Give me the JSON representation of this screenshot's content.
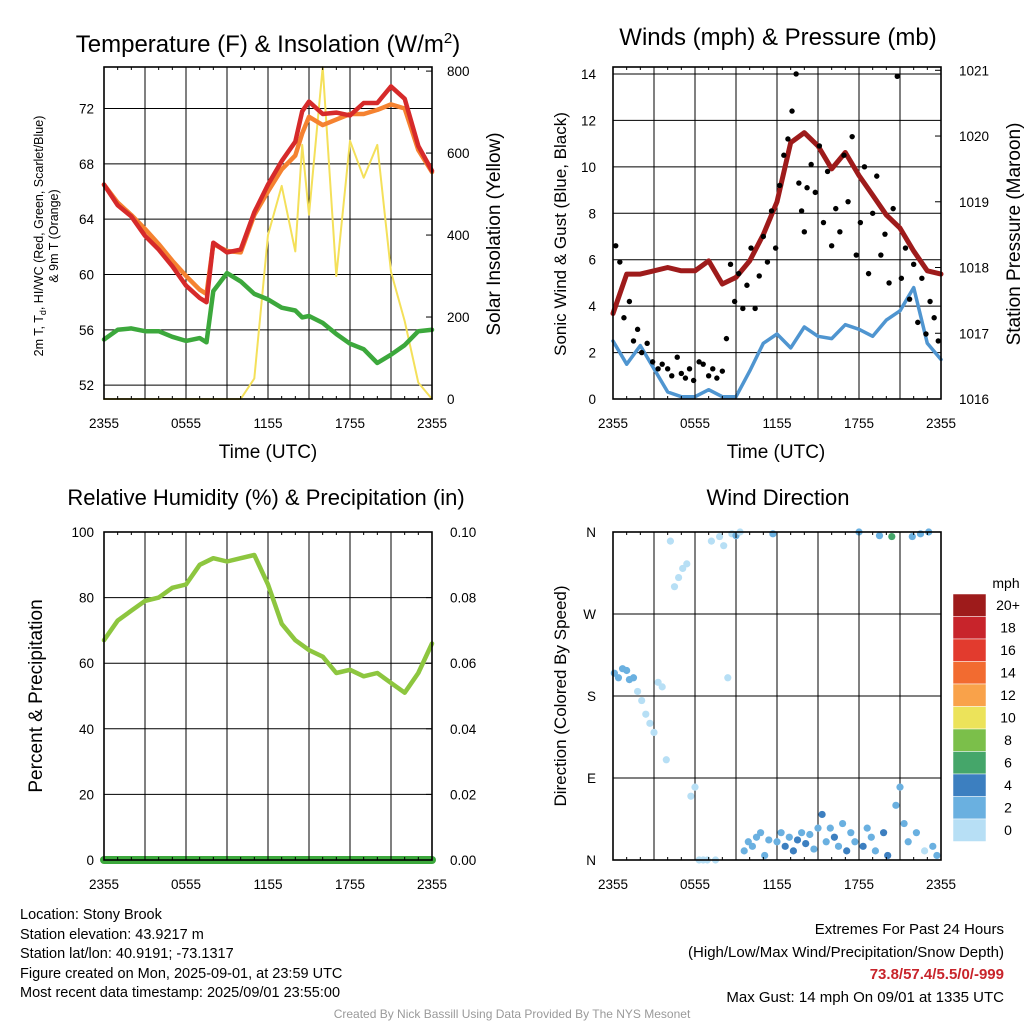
{
  "chart_data": [
    {
      "type": "line",
      "title": "Temperature (F) & Insolation (W/m",
      "title_sup": "2",
      "title_end": ")",
      "xlabel": "Time (UTC)",
      "ylabel_lines": [
        "2m T, T",
        "d",
        ", HI/WC (Red, Green, Scarlet/Blue)",
        "& 9m T (Orange)"
      ],
      "ylabel_right": "Solar Insolation (Yellow)",
      "xticks": [
        "2355",
        "0555",
        "1155",
        "1755",
        "2355"
      ],
      "ylim": [
        51,
        75
      ],
      "yticks": [
        52,
        56,
        60,
        64,
        68,
        72
      ],
      "ylim_right": [
        0,
        810
      ],
      "yticks_right": [
        0,
        200,
        400,
        600,
        800
      ],
      "grid": true,
      "x_hours": [
        0,
        1,
        2,
        3,
        4,
        5,
        6,
        7,
        7.5,
        8,
        9,
        10,
        11,
        12,
        13,
        14,
        14.5,
        15,
        16,
        17,
        18,
        19,
        20,
        21,
        22,
        23,
        24
      ],
      "series": [
        {
          "color": "#d62a2a",
          "values": [
            66.5,
            65.0,
            64.2,
            62.8,
            61.8,
            60.6,
            59.2,
            58.3,
            58.0,
            62.3,
            61.6,
            61.8,
            64.5,
            66.5,
            68.2,
            69.6,
            71.8,
            72.5,
            71.6,
            71.7,
            71.5,
            72.4,
            72.4,
            73.6,
            72.7,
            69.3,
            67.5
          ]
        },
        {
          "color": "#f58230",
          "values": [
            66.5,
            65.2,
            64.3,
            63.3,
            62.2,
            61.0,
            59.9,
            58.9,
            58.6,
            62.2,
            61.7,
            61.6,
            64.3,
            66.0,
            67.6,
            68.6,
            70.2,
            71.4,
            70.8,
            71.2,
            71.6,
            71.6,
            71.9,
            72.3,
            72.0,
            69.0,
            67.4
          ]
        },
        {
          "color": "#3ca83c",
          "values": [
            55.3,
            56.0,
            56.1,
            55.9,
            55.9,
            55.5,
            55.2,
            55.4,
            55.1,
            58.8,
            60.1,
            59.5,
            58.6,
            58.2,
            57.6,
            57.4,
            56.9,
            57.0,
            56.5,
            55.7,
            55.0,
            54.6,
            53.6,
            54.2,
            54.9,
            55.9,
            56.0
          ]
        },
        {
          "color": "#f4e05a",
          "axis": "right",
          "values": [
            0,
            0,
            0,
            0,
            0,
            0,
            0,
            0,
            0,
            0,
            0,
            0,
            50,
            400,
            520,
            360,
            620,
            450,
            810,
            300,
            630,
            540,
            620,
            310,
            190,
            40,
            0
          ]
        }
      ]
    },
    {
      "type": "line",
      "title": "Winds (mph) & Pressure (mb)",
      "xlabel": "Time (UTC)",
      "ylabel": "Sonic Wind & Gust (Blue, Black)",
      "ylabel_right": "Station Pressure (Maroon)",
      "xticks": [
        "2355",
        "0555",
        "1155",
        "1755",
        "2355"
      ],
      "ylim": [
        0,
        14.3
      ],
      "yticks": [
        0,
        2,
        4,
        6,
        8,
        10,
        12,
        14
      ],
      "ylim_right": [
        1016,
        1021.05
      ],
      "yticks_right": [
        1016,
        1017,
        1018,
        1019,
        1020,
        1021
      ],
      "grid": true,
      "x_hours": [
        0,
        1,
        2,
        3,
        4,
        5,
        6,
        7,
        8,
        9,
        10,
        11,
        12,
        13,
        14,
        15,
        16,
        17,
        18,
        19,
        20,
        21,
        22,
        23,
        24
      ],
      "series": [
        {
          "name": "",
          "color": "#4f95d0",
          "values": [
            2.5,
            1.5,
            2.3,
            1.3,
            0.3,
            0.1,
            0.1,
            0.4,
            0.1,
            0.1,
            1.2,
            2.4,
            2.8,
            2.2,
            3.1,
            2.7,
            2.6,
            3.2,
            3.0,
            2.7,
            3.4,
            3.8,
            4.8,
            2.4,
            1.7
          ]
        },
        {
          "name": "",
          "color": "#9e1b1b",
          "axis": "right",
          "values": [
            1017.3,
            1017.9,
            1017.9,
            1017.95,
            1018.0,
            1017.95,
            1017.95,
            1018.1,
            1017.75,
            1017.85,
            1018.1,
            1018.5,
            1019.0,
            1019.9,
            1020.05,
            1019.85,
            1019.5,
            1019.75,
            1019.4,
            1019.1,
            1018.8,
            1018.6,
            1018.25,
            1017.95,
            1017.9
          ]
        }
      ],
      "gust_x_hours": [
        0.2,
        0.5,
        0.8,
        1.2,
        1.5,
        1.8,
        2.1,
        2.5,
        2.9,
        3.3,
        3.6,
        4.0,
        4.3,
        4.7,
        5.0,
        5.3,
        5.6,
        5.9,
        6.3,
        6.6,
        7.0,
        7.3,
        7.6,
        8.0,
        8.3,
        8.6,
        8.9,
        9.2,
        9.5,
        9.8,
        10.1,
        10.4,
        10.7,
        11.0,
        11.3,
        11.6,
        11.9,
        12.2,
        12.5,
        12.8,
        13.1,
        13.4,
        13.6,
        13.8,
        14.0,
        14.2,
        14.5,
        14.8,
        15.1,
        15.4,
        15.7,
        16.0,
        16.3,
        16.6,
        16.9,
        17.2,
        17.5,
        17.8,
        18.1,
        18.4,
        18.7,
        19.0,
        19.3,
        19.6,
        19.9,
        20.2,
        20.5,
        20.8,
        21.1,
        21.4,
        21.7,
        22.0,
        22.3,
        22.6,
        22.9,
        23.2,
        23.5,
        23.8
      ],
      "gust_values": [
        6.6,
        5.9,
        3.5,
        4.2,
        2.5,
        3.0,
        2.0,
        2.4,
        1.6,
        1.3,
        1.5,
        1.3,
        1.0,
        1.8,
        1.1,
        0.9,
        1.3,
        0.8,
        1.6,
        1.5,
        1.0,
        1.3,
        0.9,
        1.2,
        2.6,
        5.8,
        4.2,
        5.4,
        3.9,
        4.9,
        6.5,
        3.9,
        5.3,
        7.0,
        5.9,
        8.1,
        6.5,
        9.2,
        10.5,
        11.2,
        12.4,
        14.0,
        9.3,
        8.1,
        7.2,
        9.1,
        10.1,
        8.9,
        10.9,
        7.6,
        9.8,
        6.6,
        8.2,
        7.2,
        10.5,
        8.5,
        11.3,
        6.2,
        7.6,
        10.0,
        5.4,
        8.0,
        9.6,
        6.2,
        7.1,
        5.0,
        8.2,
        13.9,
        5.2,
        6.5,
        4.3,
        5.8,
        3.3,
        5.2,
        2.8,
        4.2,
        3.5,
        2.5
      ]
    },
    {
      "type": "line",
      "title": "Relative Humidity (%) & Precipitation (in)",
      "xlabel": "",
      "ylabel": "Percent & Precipitation",
      "xticks": [
        "2355",
        "0555",
        "1155",
        "1755",
        "2355"
      ],
      "ylim": [
        0,
        100
      ],
      "yticks": [
        0,
        20,
        40,
        60,
        80,
        100
      ],
      "ylim_right": [
        0,
        0.1
      ],
      "yticks_right": [
        "0.00",
        "0.02",
        "0.04",
        "0.06",
        "0.08",
        "0.10"
      ],
      "grid": true,
      "x_hours": [
        0,
        1,
        2,
        3,
        4,
        5,
        6,
        7,
        8,
        9,
        10,
        11,
        12,
        13,
        14,
        15,
        16,
        17,
        18,
        19,
        20,
        21,
        22,
        23,
        24
      ],
      "series": [
        {
          "name": "",
          "color": "#8dc63f",
          "values": [
            67,
            73,
            76,
            79,
            80,
            83,
            84,
            90,
            92,
            91,
            92,
            93,
            84,
            72,
            67,
            64,
            62,
            57,
            58,
            56,
            57,
            54,
            51,
            57,
            66
          ]
        },
        {
          "name": "",
          "color": "#3ca83c",
          "values": [
            0,
            0,
            0,
            0,
            0,
            0,
            0,
            0,
            0,
            0,
            0,
            0,
            0,
            0,
            0,
            0,
            0,
            0,
            0,
            0,
            0,
            0,
            0,
            0,
            0
          ]
        }
      ]
    },
    {
      "type": "scatter",
      "title": "Wind Direction",
      "ylabel": "Direction (Colored By Speed)",
      "xticks": [
        "2355",
        "0555",
        "1155",
        "1755",
        "2355"
      ],
      "yticks": [
        "N",
        "E",
        "S",
        "W",
        "N"
      ],
      "ylim": [
        0,
        360
      ],
      "grid": true,
      "legend_title": "mph",
      "legend_labels": [
        "20+",
        "18",
        "16",
        "14",
        "12",
        "10",
        "8",
        "6",
        "4",
        "2",
        "0"
      ],
      "legend_colors": [
        "#9e1b1b",
        "#c8242b",
        "#e23b2e",
        "#f26b30",
        "#f9a24a",
        "#ece35a",
        "#7bbf4a",
        "#45a66a",
        "#3c7fc0",
        "#6ab0e0",
        "#b7dff5"
      ],
      "points": [
        {
          "h": 0.1,
          "d": 205,
          "s": 2
        },
        {
          "h": 0.4,
          "d": 200,
          "s": 3
        },
        {
          "h": 0.7,
          "d": 210,
          "s": 3
        },
        {
          "h": 1.0,
          "d": 208,
          "s": 2
        },
        {
          "h": 1.2,
          "d": 198,
          "s": 2
        },
        {
          "h": 1.5,
          "d": 200,
          "s": 3
        },
        {
          "h": 1.8,
          "d": 185,
          "s": 1
        },
        {
          "h": 2.1,
          "d": 175,
          "s": 1
        },
        {
          "h": 2.4,
          "d": 160,
          "s": 1
        },
        {
          "h": 2.7,
          "d": 150,
          "s": 1
        },
        {
          "h": 3.0,
          "d": 140,
          "s": 1
        },
        {
          "h": 3.3,
          "d": 195,
          "s": 1
        },
        {
          "h": 3.6,
          "d": 190,
          "s": 1
        },
        {
          "h": 3.9,
          "d": 110,
          "s": 1
        },
        {
          "h": 4.2,
          "d": 350,
          "s": 1
        },
        {
          "h": 4.5,
          "d": 300,
          "s": 1
        },
        {
          "h": 4.8,
          "d": 310,
          "s": 1
        },
        {
          "h": 5.1,
          "d": 320,
          "s": 1
        },
        {
          "h": 5.4,
          "d": 325,
          "s": 1
        },
        {
          "h": 5.7,
          "d": 70,
          "s": 1
        },
        {
          "h": 6.0,
          "d": 80,
          "s": 1
        },
        {
          "h": 6.3,
          "d": 0,
          "s": 0
        },
        {
          "h": 6.6,
          "d": 0,
          "s": 0
        },
        {
          "h": 6.9,
          "d": 0,
          "s": 0
        },
        {
          "h": 7.2,
          "d": 350,
          "s": 1
        },
        {
          "h": 7.5,
          "d": 0,
          "s": 0
        },
        {
          "h": 7.8,
          "d": 355,
          "s": 1
        },
        {
          "h": 8.1,
          "d": 345,
          "s": 1
        },
        {
          "h": 8.4,
          "d": 200,
          "s": 1
        },
        {
          "h": 8.7,
          "d": 358,
          "s": 1
        },
        {
          "h": 9.0,
          "d": 356,
          "s": 2
        },
        {
          "h": 9.3,
          "d": 360,
          "s": 1
        },
        {
          "h": 9.6,
          "d": 10,
          "s": 2
        },
        {
          "h": 9.9,
          "d": 20,
          "s": 3
        },
        {
          "h": 10.2,
          "d": 15,
          "s": 2
        },
        {
          "h": 10.5,
          "d": 25,
          "s": 3
        },
        {
          "h": 10.8,
          "d": 30,
          "s": 2
        },
        {
          "h": 11.1,
          "d": 5,
          "s": 3
        },
        {
          "h": 11.4,
          "d": 22,
          "s": 2
        },
        {
          "h": 11.7,
          "d": 358,
          "s": 2
        },
        {
          "h": 12.0,
          "d": 20,
          "s": 3
        },
        {
          "h": 12.3,
          "d": 30,
          "s": 3
        },
        {
          "h": 12.6,
          "d": 15,
          "s": 4
        },
        {
          "h": 12.9,
          "d": 25,
          "s": 3
        },
        {
          "h": 13.2,
          "d": 10,
          "s": 4
        },
        {
          "h": 13.5,
          "d": 22,
          "s": 5
        },
        {
          "h": 13.8,
          "d": 30,
          "s": 3
        },
        {
          "h": 14.1,
          "d": 18,
          "s": 4
        },
        {
          "h": 14.4,
          "d": 28,
          "s": 3
        },
        {
          "h": 14.7,
          "d": 12,
          "s": 3
        },
        {
          "h": 15.0,
          "d": 35,
          "s": 3
        },
        {
          "h": 15.3,
          "d": 50,
          "s": 4
        },
        {
          "h": 15.6,
          "d": 20,
          "s": 3
        },
        {
          "h": 15.9,
          "d": 35,
          "s": 3
        },
        {
          "h": 16.2,
          "d": 25,
          "s": 4
        },
        {
          "h": 16.5,
          "d": 15,
          "s": 3
        },
        {
          "h": 16.8,
          "d": 40,
          "s": 3
        },
        {
          "h": 17.1,
          "d": 10,
          "s": 4
        },
        {
          "h": 17.4,
          "d": 30,
          "s": 3
        },
        {
          "h": 17.7,
          "d": 20,
          "s": 3
        },
        {
          "h": 18.0,
          "d": 360,
          "s": 3
        },
        {
          "h": 18.3,
          "d": 15,
          "s": 4
        },
        {
          "h": 18.6,
          "d": 35,
          "s": 3
        },
        {
          "h": 18.9,
          "d": 25,
          "s": 3
        },
        {
          "h": 19.2,
          "d": 10,
          "s": 3
        },
        {
          "h": 19.5,
          "d": 356,
          "s": 3
        },
        {
          "h": 19.8,
          "d": 30,
          "s": 4
        },
        {
          "h": 20.1,
          "d": 5,
          "s": 4
        },
        {
          "h": 20.4,
          "d": 355,
          "s": 6
        },
        {
          "h": 20.7,
          "d": 60,
          "s": 3
        },
        {
          "h": 21.0,
          "d": 80,
          "s": 3
        },
        {
          "h": 21.3,
          "d": 40,
          "s": 2
        },
        {
          "h": 21.6,
          "d": 20,
          "s": 2
        },
        {
          "h": 21.9,
          "d": 355,
          "s": 2
        },
        {
          "h": 22.2,
          "d": 30,
          "s": 2
        },
        {
          "h": 22.5,
          "d": 358,
          "s": 2
        },
        {
          "h": 22.8,
          "d": 10,
          "s": 1
        },
        {
          "h": 23.1,
          "d": 360,
          "s": 2
        },
        {
          "h": 23.4,
          "d": 15,
          "s": 2
        },
        {
          "h": 23.7,
          "d": 5,
          "s": 2
        }
      ]
    }
  ],
  "footer": {
    "location": "Location: Stony Brook",
    "elevation": "Station elevation: 43.9217 m",
    "latlon": "Station lat/lon: 40.9191; -73.1317",
    "created": "Figure created on Mon, 2025-09-01, at 23:59 UTC",
    "recent": "Most recent data timestamp: 2025/09/01 23:55:00",
    "extremes_title": "Extremes For Past 24 Hours",
    "extremes_desc": "(High/Low/Max Wind/Precipitation/Snow Depth)",
    "extremes_values": "73.8/57.4/5.5/0/-999",
    "max_gust": "Max Gust: 14 mph On 09/01 at 1335 UTC",
    "credit": "Created By Nick Bassill Using Data Provided By The NYS Mesonet"
  },
  "colors": {
    "extremes": "#c8242b",
    "credit": "#9a9a9a"
  }
}
